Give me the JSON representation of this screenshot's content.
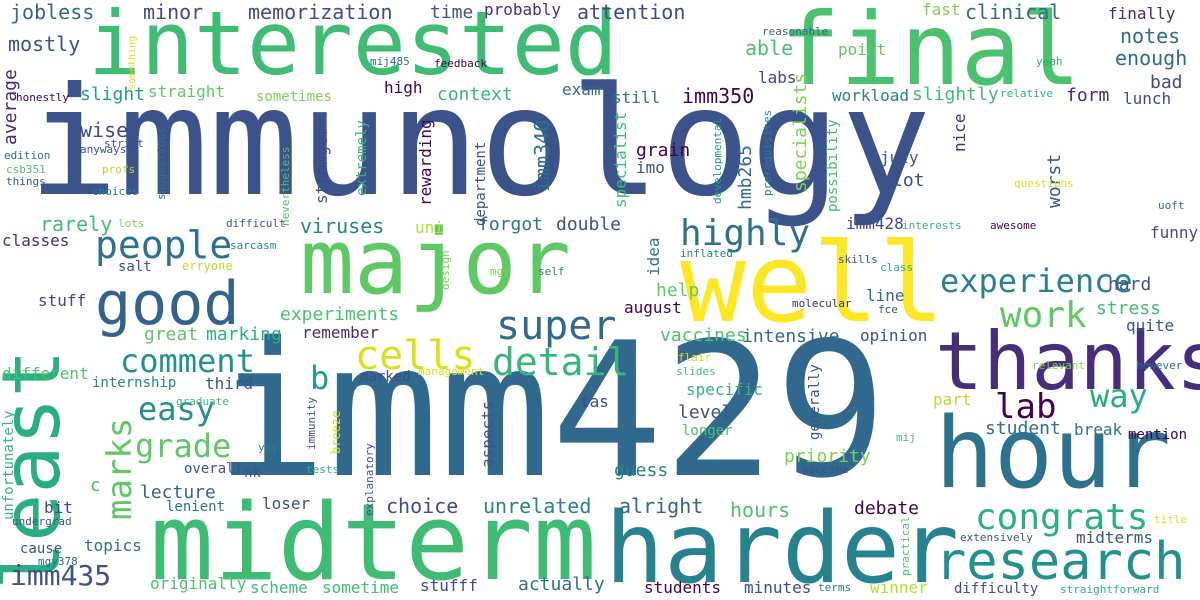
{
  "words": [
    {
      "text": "immunology",
      "color": "#3b528b"
    },
    {
      "text": "imm429",
      "color": "#31688e"
    },
    {
      "text": "interested",
      "color": "#3fbc73"
    },
    {
      "text": "final",
      "color": "#4ac16d"
    },
    {
      "text": "midterm",
      "color": "#3fbc73"
    },
    {
      "text": "harder",
      "color": "#26828e"
    },
    {
      "text": "major",
      "color": "#5ec962"
    },
    {
      "text": "well",
      "color": "#fde725"
    },
    {
      "text": "least",
      "color": "#29af7f"
    },
    {
      "text": "hour",
      "color": "#2c728e"
    },
    {
      "text": "thanks",
      "color": "#472d7b"
    },
    {
      "text": "good",
      "color": "#33638d"
    },
    {
      "text": "research",
      "color": "#21918c"
    },
    {
      "text": "experience",
      "color": "#26828e"
    },
    {
      "text": "people",
      "color": "#2c728e"
    },
    {
      "text": "super",
      "color": "#31688e"
    },
    {
      "text": "highly",
      "color": "#2c728e"
    },
    {
      "text": "cells",
      "color": "#d8e219"
    },
    {
      "text": "detail",
      "color": "#35b779"
    },
    {
      "text": "comment",
      "color": "#21918c"
    },
    {
      "text": "congrats",
      "color": "#2ab07f"
    },
    {
      "text": "lab",
      "color": "#440154"
    },
    {
      "text": "work",
      "color": "#5ec962"
    },
    {
      "text": "way",
      "color": "#29af7f"
    },
    {
      "text": "easy",
      "color": "#21918c"
    },
    {
      "text": "grade",
      "color": "#5ec962"
    },
    {
      "text": "marks",
      "color": "#5ec962"
    },
    {
      "text": "imm435",
      "color": "#3b528b"
    },
    {
      "text": "b",
      "color": "#1f9e89"
    },
    {
      "text": "jobless",
      "color": "#31688e"
    },
    {
      "text": "minor",
      "color": "#3e4a89"
    },
    {
      "text": "memorization",
      "color": "#3e4a89"
    },
    {
      "text": "time",
      "color": "#3b528b"
    },
    {
      "text": "probably",
      "color": "#472d7b"
    },
    {
      "text": "attention",
      "color": "#3e4a89"
    },
    {
      "text": "able",
      "color": "#4ac16d"
    },
    {
      "text": "fast",
      "color": "#7ad151"
    },
    {
      "text": "clinical",
      "color": "#31688e"
    },
    {
      "text": "finally",
      "color": "#482878"
    },
    {
      "text": "mostly",
      "color": "#3b528b"
    },
    {
      "text": "notes",
      "color": "#31688e"
    },
    {
      "text": "enough",
      "color": "#31688e"
    },
    {
      "text": "labs",
      "color": "#3e4a89"
    },
    {
      "text": "point",
      "color": "#5ec962"
    },
    {
      "text": "bad",
      "color": "#3e4a89"
    },
    {
      "text": "high",
      "color": "#440154"
    },
    {
      "text": "context",
      "color": "#35b779"
    },
    {
      "text": "exam",
      "color": "#31688e"
    },
    {
      "text": "still",
      "color": "#2c728e"
    },
    {
      "text": "imm350",
      "color": "#440154"
    },
    {
      "text": "form",
      "color": "#482878"
    },
    {
      "text": "lunch",
      "color": "#3e4a89"
    },
    {
      "text": "workload",
      "color": "#26828e"
    },
    {
      "text": "slightly",
      "color": "#3fbc73"
    },
    {
      "text": "average",
      "color": "#482878"
    },
    {
      "text": "slight",
      "color": "#1f9e89"
    },
    {
      "text": "straight",
      "color": "#5ec962"
    },
    {
      "text": "sometimes",
      "color": "#7ad151"
    },
    {
      "text": "wise",
      "color": "#3e4a89"
    },
    {
      "text": "imm340",
      "color": "#2c728e"
    },
    {
      "text": "grain",
      "color": "#440154"
    },
    {
      "text": "imo",
      "color": "#3b528b"
    },
    {
      "text": "hmb265",
      "color": "#31688e"
    },
    {
      "text": "specialists",
      "color": "#7ad151"
    },
    {
      "text": "specialist",
      "color": "#3fbc73"
    },
    {
      "text": "double",
      "color": "#3b528b"
    },
    {
      "text": "forgot",
      "color": "#2c728e"
    },
    {
      "text": "viruses",
      "color": "#26828e"
    },
    {
      "text": "uni",
      "color": "#b5de2b"
    },
    {
      "text": "imm428",
      "color": "#3e4a89"
    },
    {
      "text": "classes",
      "color": "#472d7b"
    },
    {
      "text": "rarely",
      "color": "#3fbc73"
    },
    {
      "text": "salt",
      "color": "#3b528b"
    },
    {
      "text": "stuff",
      "color": "#3e4a89"
    },
    {
      "text": "experiments",
      "color": "#4ac16d"
    },
    {
      "text": "remember",
      "color": "#482878"
    },
    {
      "text": "great",
      "color": "#5ec962"
    },
    {
      "text": "marking",
      "color": "#2ab07f"
    },
    {
      "text": "vaccines",
      "color": "#4ac16d"
    },
    {
      "text": "intensive",
      "color": "#31688e"
    },
    {
      "text": "help",
      "color": "#5ec962"
    },
    {
      "text": "august",
      "color": "#440154"
    },
    {
      "text": "line",
      "color": "#31688e"
    },
    {
      "text": "opinion",
      "color": "#3b528b"
    },
    {
      "text": "hard",
      "color": "#3b528b"
    },
    {
      "text": "stress",
      "color": "#3fbc73"
    },
    {
      "text": "quite",
      "color": "#3b528b"
    },
    {
      "text": "funny",
      "color": "#3e4a89"
    },
    {
      "text": "lot",
      "color": "#3e4a89"
    },
    {
      "text": "july",
      "color": "#3b528b"
    },
    {
      "text": "nice",
      "color": "#472d7b"
    },
    {
      "text": "worst",
      "color": "#3b528b"
    },
    {
      "text": "different",
      "color": "#4ac16d"
    },
    {
      "text": "internship",
      "color": "#26828e"
    },
    {
      "text": "third",
      "color": "#3b528b"
    },
    {
      "text": "marked",
      "color": "#3e4a89"
    },
    {
      "text": "specific",
      "color": "#35b779"
    },
    {
      "text": "level",
      "color": "#3b528b"
    },
    {
      "text": "part",
      "color": "#b5de2b"
    },
    {
      "text": "student",
      "color": "#2c728e"
    },
    {
      "text": "break",
      "color": "#2c728e"
    },
    {
      "text": "mention",
      "color": "#440154"
    },
    {
      "text": "priority",
      "color": "#7ad151"
    },
    {
      "text": "guess",
      "color": "#26828e"
    },
    {
      "text": "longer",
      "color": "#4ac16d"
    },
    {
      "text": "lecture",
      "color": "#31688e"
    },
    {
      "text": "overall",
      "color": "#3b528b"
    },
    {
      "text": "nk",
      "color": "#3b528b"
    },
    {
      "text": "bit",
      "color": "#3e4a89"
    },
    {
      "text": "lenient",
      "color": "#2c728e"
    },
    {
      "text": "loser",
      "color": "#3e4a89"
    },
    {
      "text": "choice",
      "color": "#3e4a89"
    },
    {
      "text": "unrelated",
      "color": "#26828e"
    },
    {
      "text": "alright",
      "color": "#31688e"
    },
    {
      "text": "hours",
      "color": "#4ac16d"
    },
    {
      "text": "debate",
      "color": "#440154"
    },
    {
      "text": "midterms",
      "color": "#3b528b"
    },
    {
      "text": "topics",
      "color": "#2c728e"
    },
    {
      "text": "cause",
      "color": "#3b528b"
    },
    {
      "text": "originally",
      "color": "#4ac16d"
    },
    {
      "text": "scheme",
      "color": "#3fbc73"
    },
    {
      "text": "sometime",
      "color": "#3fbc73"
    },
    {
      "text": "stufff",
      "color": "#3e4a89"
    },
    {
      "text": "actually",
      "color": "#2c728e"
    },
    {
      "text": "students",
      "color": "#440154"
    },
    {
      "text": "minutes",
      "color": "#3e4a89"
    },
    {
      "text": "winner",
      "color": "#b5de2b"
    },
    {
      "text": "c",
      "color": "#3fbc73"
    },
    {
      "text": "generally",
      "color": "#3b528b"
    },
    {
      "text": "tas",
      "color": "#3e4a89"
    },
    {
      "text": "aspects",
      "color": "#3b528b"
    },
    {
      "text": "idea",
      "color": "#2c728e"
    },
    {
      "text": "department",
      "color": "#3b528b"
    },
    {
      "text": "rewarding",
      "color": "#440154"
    },
    {
      "text": "extremely",
      "color": "#35b779"
    },
    {
      "text": "stronger",
      "color": "#3e4a89"
    },
    {
      "text": "possibility",
      "color": "#3fbc73"
    },
    {
      "text": "unfortunately",
      "color": "#35b779"
    },
    {
      "text": "something",
      "color": "#d8e219"
    },
    {
      "text": "mij485",
      "color": "#31688e"
    },
    {
      "text": "feedback",
      "color": "#440154"
    },
    {
      "text": "honestly",
      "color": "#440154"
    },
    {
      "text": "strict",
      "color": "#3e4a89"
    },
    {
      "text": "anyways",
      "color": "#3b528b"
    },
    {
      "text": "profs",
      "color": "#b5de2b"
    },
    {
      "text": "choices",
      "color": "#26828e"
    },
    {
      "text": "edition",
      "color": "#31688e"
    },
    {
      "text": "csb351",
      "color": "#4ac16d"
    },
    {
      "text": "things",
      "color": "#3b528b"
    },
    {
      "text": "suggestions",
      "color": "#2c728e"
    },
    {
      "text": "nevertheless",
      "color": "#4ac16d"
    },
    {
      "text": "lots",
      "color": "#7ad151"
    },
    {
      "text": "difficult",
      "color": "#3b528b"
    },
    {
      "text": "sarcasm",
      "color": "#26828e"
    },
    {
      "text": "erryone",
      "color": "#b5de2b"
    },
    {
      "text": "design",
      "color": "#7ad151"
    },
    {
      "text": "mgy",
      "color": "#7ad151"
    },
    {
      "text": "self",
      "color": "#2c728e"
    },
    {
      "text": "inflated",
      "color": "#26828e"
    },
    {
      "text": "skills",
      "color": "#3b528b"
    },
    {
      "text": "molecular",
      "color": "#482878"
    },
    {
      "text": "fce",
      "color": "#3b528b"
    },
    {
      "text": "class",
      "color": "#2ab07f"
    },
    {
      "text": "interests",
      "color": "#35b779"
    },
    {
      "text": "awesome",
      "color": "#440154"
    },
    {
      "text": "uoft",
      "color": "#2c728e"
    },
    {
      "text": "questions",
      "color": "#d8e219"
    },
    {
      "text": "yeah",
      "color": "#2ab07f"
    },
    {
      "text": "relative",
      "color": "#2ab07f"
    },
    {
      "text": "reasonable",
      "color": "#31688e"
    },
    {
      "text": "developmental",
      "color": "#1f9e89"
    },
    {
      "text": "prerequisites",
      "color": "#26828e"
    },
    {
      "text": "relevant",
      "color": "#7ad151"
    },
    {
      "text": "however",
      "color": "#2c728e"
    },
    {
      "text": "flair",
      "color": "#d8e219"
    },
    {
      "text": "slides",
      "color": "#3fbc73"
    },
    {
      "text": "management",
      "color": "#d8e219"
    },
    {
      "text": "graduate",
      "color": "#3fbc73"
    },
    {
      "text": "immunity",
      "color": "#3b528b"
    },
    {
      "text": "breeze",
      "color": "#d8e219"
    },
    {
      "text": "yay",
      "color": "#26828e"
    },
    {
      "text": "tests",
      "color": "#2ab07f"
    },
    {
      "text": "explanatory",
      "color": "#3b528b"
    },
    {
      "text": "vaccine",
      "color": "#3b528b"
    },
    {
      "text": "mij",
      "color": "#3fbc73"
    },
    {
      "text": "undergrad",
      "color": "#3b528b"
    },
    {
      "text": "mgy378",
      "color": "#31688e"
    },
    {
      "text": "practical",
      "color": "#4ac16d"
    },
    {
      "text": "extensively",
      "color": "#3b528b"
    },
    {
      "text": "title",
      "color": "#d8e219"
    },
    {
      "text": "terms",
      "color": "#2c728e"
    },
    {
      "text": "difficulty",
      "color": "#3e4a89"
    },
    {
      "text": "straightforward",
      "color": "#2ab07f"
    }
  ]
}
